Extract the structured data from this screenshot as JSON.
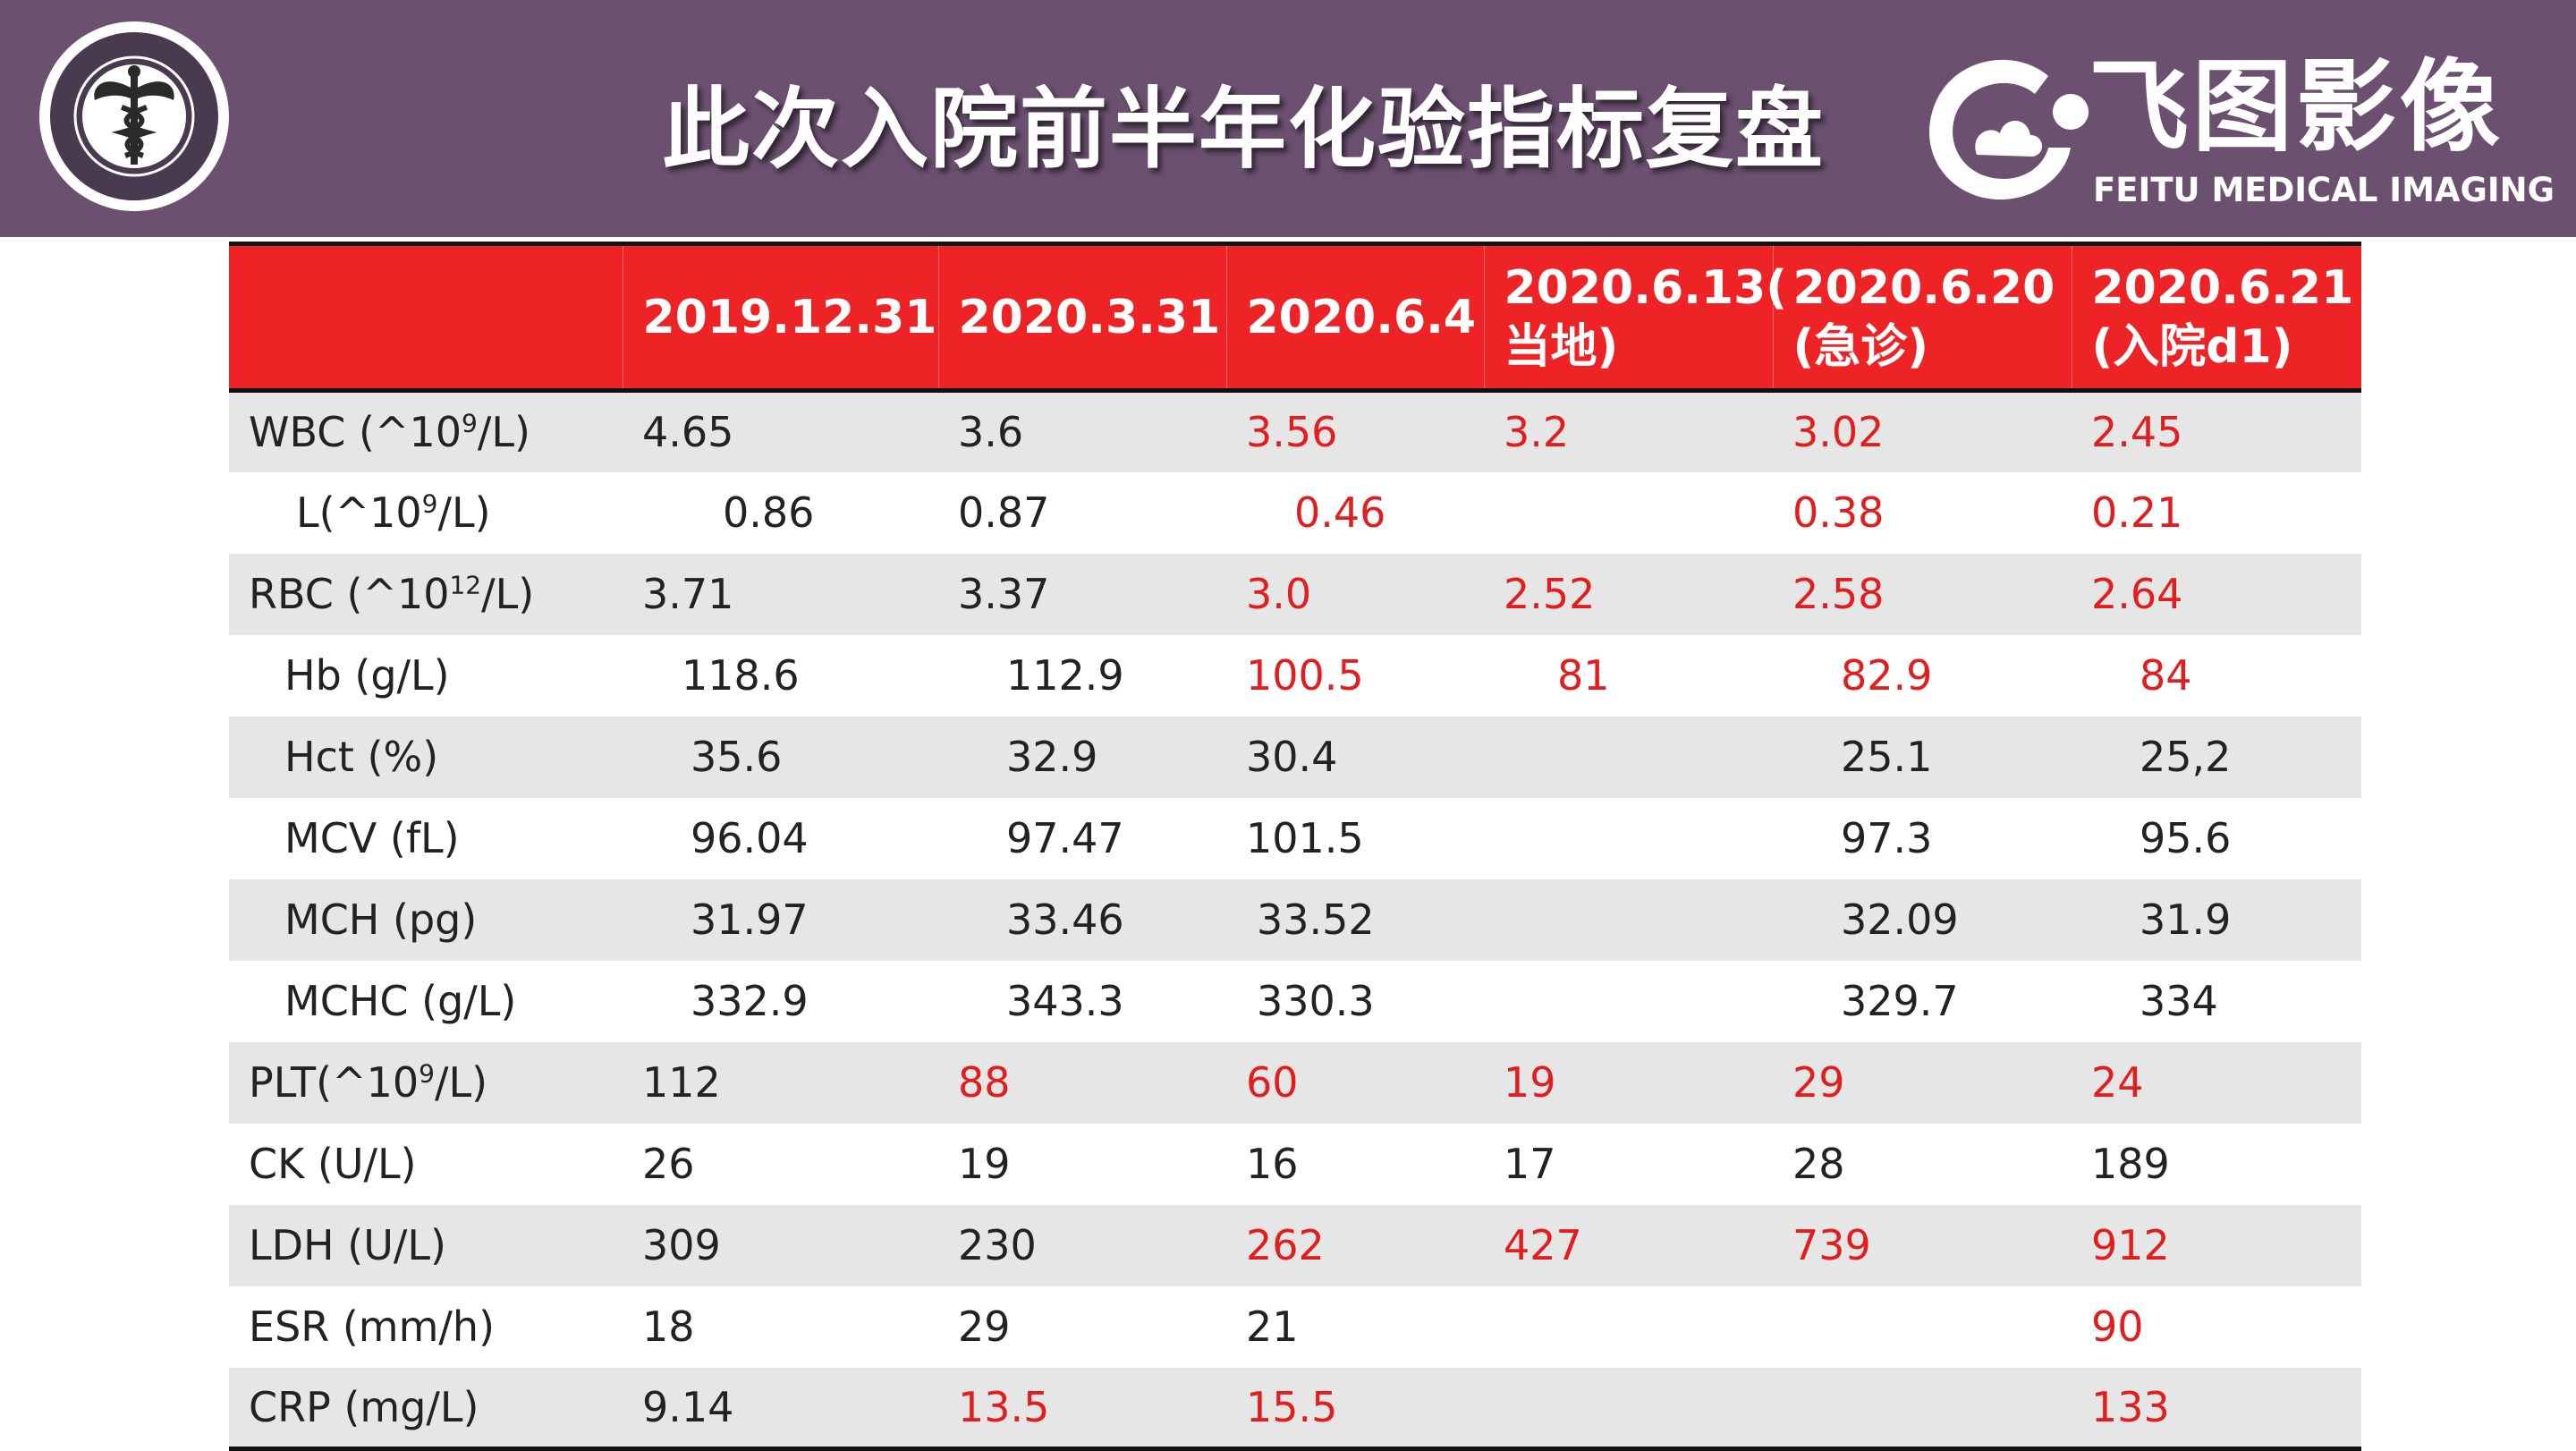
{
  "header": {
    "title": "此次入院前半年化验指标复盘",
    "logo_cn": "飞图影像",
    "logo_en": "FEITU MEDICAL IMAGING",
    "seal_icon": "caduceus-seal-icon",
    "logo_icon": "feitu-cloud-logo-icon"
  },
  "colors": {
    "header_bg": "#6b5070",
    "table_header_bg": "#ee2326",
    "abnormal_text": "#e31d1d",
    "normal_text": "#222222"
  },
  "table": {
    "columns": [
      "",
      "2019.12.31",
      "2020.3.31",
      "2020.6.4",
      "2020.6.13(当地)",
      "2020.6.20(急诊)",
      "2020.6.21(入院d1)"
    ],
    "rows": [
      {
        "label": "WBC (^10",
        "sup": "9",
        "suffix": "/L)",
        "values": [
          "4.65",
          "3.6",
          "3.56",
          "3.2",
          "3.02",
          "2.45"
        ]
      },
      {
        "label": "L(^10",
        "sup": "9",
        "suffix": "/L)",
        "values": [
          "0.86",
          "0.87",
          "0.46",
          "",
          "0.38",
          "0.21"
        ]
      },
      {
        "label": "RBC (^10",
        "sup": "12",
        "suffix": "/L)",
        "values": [
          "3.71",
          "3.37",
          "3.0",
          "2.52",
          "2.58",
          "2.64"
        ]
      },
      {
        "label": "Hb (g/L)",
        "sup": "",
        "suffix": "",
        "values": [
          "118.6",
          "112.9",
          "100.5",
          "81",
          "82.9",
          "84"
        ]
      },
      {
        "label": "Hct (%)",
        "sup": "",
        "suffix": "",
        "values": [
          "35.6",
          "32.9",
          "30.4",
          "",
          "25.1",
          "25,2"
        ]
      },
      {
        "label": "MCV (fL)",
        "sup": "",
        "suffix": "",
        "values": [
          "96.04",
          "97.47",
          "101.5",
          "",
          "97.3",
          "95.6"
        ]
      },
      {
        "label": "MCH (pg)",
        "sup": "",
        "suffix": "",
        "values": [
          "31.97",
          "33.46",
          "33.52",
          "",
          "32.09",
          "31.9"
        ]
      },
      {
        "label": "MCHC (g/L)",
        "sup": "",
        "suffix": "",
        "values": [
          "332.9",
          "343.3",
          "330.3",
          "",
          "329.7",
          "334"
        ]
      },
      {
        "label": "PLT(^10",
        "sup": "9",
        "suffix": "/L)",
        "values": [
          "112",
          "88",
          "60",
          "19",
          "29",
          "24"
        ]
      },
      {
        "label": "CK (U/L)",
        "sup": "",
        "suffix": "",
        "values": [
          "26",
          "19",
          "16",
          "17",
          "28",
          "189"
        ]
      },
      {
        "label": "LDH (U/L)",
        "sup": "",
        "suffix": "",
        "values": [
          "309",
          "230",
          "262",
          "427",
          "739",
          "912"
        ]
      },
      {
        "label": "ESR (mm/h)",
        "sup": "",
        "suffix": "",
        "values": [
          "18",
          "29",
          "21",
          "",
          "",
          "90"
        ]
      },
      {
        "label": "CRP (mg/L)",
        "sup": "",
        "suffix": "",
        "values": [
          "9.14",
          "13.5",
          "15.5",
          "",
          "",
          "133"
        ]
      }
    ]
  }
}
